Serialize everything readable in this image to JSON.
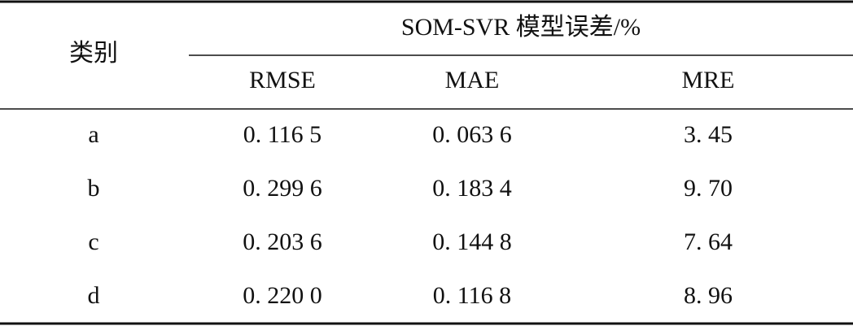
{
  "table": {
    "row_header": "类别",
    "group_header": "SOM-SVR 模型误差/%",
    "columns": [
      "RMSE",
      "MAE",
      "MRE"
    ],
    "rows": [
      [
        "a",
        "0. 116 5",
        "0. 063 6",
        "3. 45"
      ],
      [
        "b",
        "0. 299 6",
        "0. 183 4",
        "9. 70"
      ],
      [
        "c",
        "0. 203 6",
        "0. 144 8",
        "7. 64"
      ],
      [
        "d",
        "0. 220 0",
        "0. 116 8",
        "8. 96"
      ]
    ]
  }
}
